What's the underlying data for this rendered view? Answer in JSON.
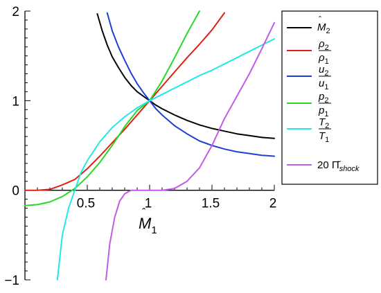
{
  "chart_data": {
    "type": "line",
    "xlabel": {
      "base": "M",
      "hat": "ˆ",
      "sub": "1"
    },
    "xlim": [
      0,
      2
    ],
    "ylim": [
      -1,
      2
    ],
    "x_ticks": [
      {
        "value": 0.5,
        "label": "0.5"
      },
      {
        "value": 1,
        "label": "1"
      },
      {
        "value": 1.5,
        "label": "1.5"
      },
      {
        "value": 2,
        "label": "2"
      }
    ],
    "y_ticks": [
      {
        "value": -1,
        "label": "−1"
      },
      {
        "value": 0,
        "label": "0"
      },
      {
        "value": 1,
        "label": "1"
      },
      {
        "value": 2,
        "label": "2"
      }
    ],
    "grid": false,
    "legend_position": "right",
    "series": [
      {
        "key": "M2",
        "color": "#000000",
        "legend": {
          "kind": "var",
          "text": "M",
          "hat": "ˆ",
          "sub": "2"
        },
        "x": [
          0.58,
          0.62,
          0.66,
          0.7,
          0.75,
          0.8,
          0.85,
          0.9,
          0.95,
          1.0,
          1.05,
          1.1,
          1.2,
          1.3,
          1.4,
          1.5,
          1.6,
          1.7,
          1.8,
          1.9,
          2.0
        ],
        "y": [
          1.97,
          1.78,
          1.62,
          1.49,
          1.37,
          1.26,
          1.17,
          1.1,
          1.05,
          1.0,
          0.95,
          0.91,
          0.84,
          0.78,
          0.73,
          0.69,
          0.66,
          0.63,
          0.61,
          0.59,
          0.58
        ]
      },
      {
        "key": "rho",
        "color": "#e02010",
        "legend": {
          "kind": "frac",
          "num": "ρ",
          "num_sub": "2",
          "den": "ρ",
          "den_sub": "1"
        },
        "x": [
          0.0,
          0.1,
          0.2,
          0.3,
          0.4,
          0.5,
          0.6,
          0.7,
          0.8,
          0.9,
          1.0,
          1.1,
          1.2,
          1.3,
          1.4,
          1.5,
          1.6
        ],
        "y": [
          0.0,
          0.0,
          0.01,
          0.06,
          0.12,
          0.24,
          0.38,
          0.53,
          0.68,
          0.84,
          1.0,
          1.16,
          1.32,
          1.48,
          1.63,
          1.79,
          1.98
        ]
      },
      {
        "key": "u",
        "color": "#1f3ed6",
        "legend": {
          "kind": "frac",
          "num": "u",
          "num_sub": "2",
          "den": "u",
          "den_sub": "1"
        },
        "x": [
          0.66,
          0.7,
          0.75,
          0.8,
          0.85,
          0.9,
          0.95,
          1.0,
          1.05,
          1.1,
          1.2,
          1.3,
          1.4,
          1.5,
          1.6,
          1.7,
          1.8,
          1.9,
          2.0
        ],
        "y": [
          1.98,
          1.78,
          1.6,
          1.45,
          1.31,
          1.19,
          1.09,
          1.0,
          0.91,
          0.84,
          0.72,
          0.63,
          0.55,
          0.5,
          0.46,
          0.43,
          0.41,
          0.39,
          0.38
        ]
      },
      {
        "key": "p",
        "color": "#27d827",
        "legend": {
          "kind": "frac",
          "num": "p",
          "num_sub": "2",
          "den": "p",
          "den_sub": "1"
        },
        "x": [
          0.0,
          0.1,
          0.2,
          0.3,
          0.4,
          0.5,
          0.6,
          0.7,
          0.8,
          0.9,
          1.0,
          1.1,
          1.2,
          1.3,
          1.4
        ],
        "y": [
          -0.17,
          -0.16,
          -0.13,
          -0.07,
          0.02,
          0.15,
          0.31,
          0.5,
          0.71,
          0.89,
          1.0,
          1.22,
          1.48,
          1.75,
          2.0
        ]
      },
      {
        "key": "T",
        "color": "#22e8e8",
        "legend": {
          "kind": "frac",
          "num": "T",
          "num_sub": "2",
          "den": "T",
          "den_sub": "1"
        },
        "x": [
          0.26,
          0.3,
          0.35,
          0.4,
          0.45,
          0.5,
          0.6,
          0.7,
          0.8,
          0.9,
          1.0,
          1.1,
          1.2,
          1.3,
          1.4,
          1.5,
          1.6,
          1.7,
          1.8,
          1.9,
          2.0
        ],
        "y": [
          -1.0,
          -0.5,
          -0.2,
          0.0,
          0.2,
          0.33,
          0.54,
          0.7,
          0.82,
          0.92,
          1.0,
          1.07,
          1.14,
          1.21,
          1.28,
          1.34,
          1.41,
          1.48,
          1.55,
          1.62,
          1.69
        ]
      },
      {
        "key": "pi",
        "color": "#c259e8",
        "legend": {
          "kind": "text",
          "text": "20 Π̆",
          "sub": "shock"
        },
        "x": [
          0.65,
          0.68,
          0.72,
          0.76,
          0.8,
          0.85,
          0.9,
          1.0,
          1.1,
          1.2,
          1.3,
          1.4,
          1.5,
          1.6,
          1.7,
          1.8,
          1.9,
          2.0
        ],
        "y": [
          -1.0,
          -0.6,
          -0.3,
          -0.12,
          -0.04,
          0.0,
          0.0,
          0.0,
          0.0,
          0.02,
          0.1,
          0.25,
          0.5,
          0.8,
          1.05,
          1.3,
          1.58,
          1.87
        ]
      }
    ]
  }
}
